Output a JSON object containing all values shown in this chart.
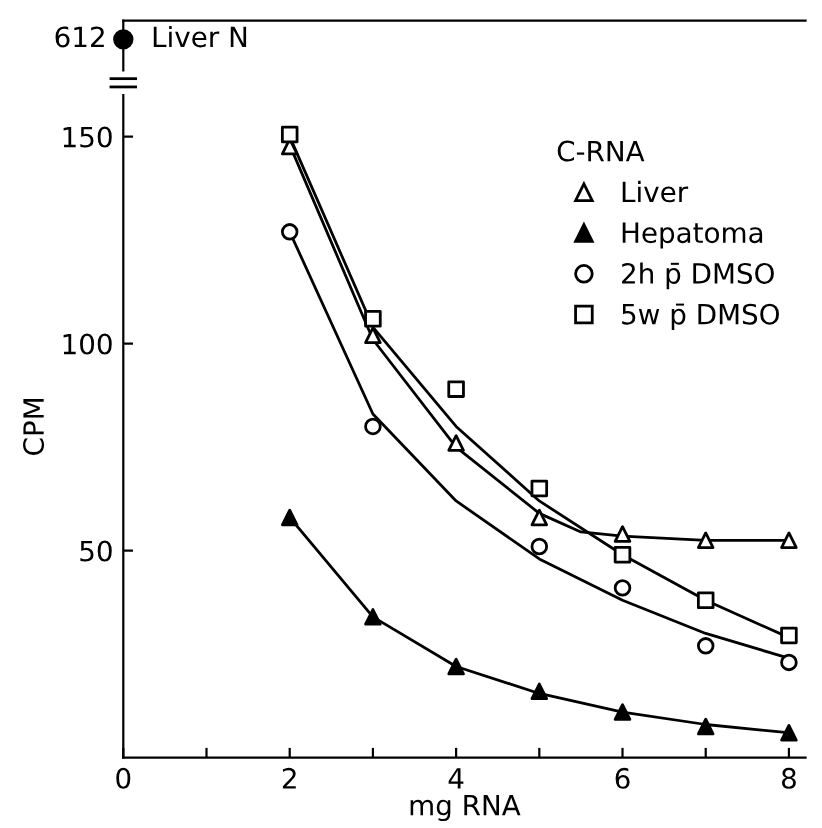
{
  "chart_data": [
    {
      "type": "other",
      "categories": [
        null
      ],
      "data_labels": true,
      "series": [
        {
          "name": "Liver N",
          "color": "#000000",
          "marker": "circle",
          "values": [
            612
          ]
        }
      ]
    },
    {
      "type": "scatter",
      "xlabel": "mg RNA",
      "ylabel": "CPM",
      "legend_title": "C-RNA",
      "legend": "top right",
      "grid": false,
      "xlim": [
        0,
        8.2
      ],
      "ylim": [
        0,
        160
      ],
      "xticks": [
        0,
        {
          "value": 1,
          "label": null
        },
        2,
        {
          "value": 3,
          "label": null
        },
        4,
        {
          "value": 5,
          "label": null
        },
        6,
        {
          "value": 7,
          "label": null
        },
        8
      ],
      "yticks": [
        50,
        100,
        150
      ],
      "series": [
        {
          "name": "Liver",
          "color": "#ffffff",
          "marker": "triangle",
          "x": [
            2,
            3,
            4,
            5,
            6,
            7,
            8
          ],
          "values": [
            147.6,
            102,
            76,
            58,
            54,
            52.5,
            52.5
          ]
        },
        {
          "name": "Hepatoma",
          "color": "#000000",
          "marker": "triangle",
          "x": [
            2,
            3,
            4,
            5,
            6,
            7,
            8
          ],
          "values": [
            58,
            34,
            22,
            16,
            11,
            7.5,
            6
          ]
        },
        {
          "name": "2h p̄ DMSO",
          "color": "#ffffff",
          "marker": "circle",
          "x": [
            2,
            3,
            5,
            6,
            7,
            8
          ],
          "values": [
            127,
            80,
            51,
            41,
            27,
            23
          ]
        },
        {
          "name": "5w p̄ DMSO",
          "color": "#ffffff",
          "marker": "square",
          "x": [
            2,
            3,
            4,
            5,
            6,
            7,
            8
          ],
          "values": [
            150.5,
            106,
            89,
            65,
            49,
            38,
            29.5
          ]
        },
        {
          "type": "line",
          "color": "#000000",
          "x": [
            2,
            3,
            4,
            5,
            5.5,
            6,
            7,
            8
          ],
          "values": [
            148,
            101,
            75,
            59,
            54.5,
            53.5,
            52.5,
            52.5
          ]
        },
        {
          "type": "line",
          "color": "#000000",
          "x": [
            2,
            3,
            4,
            5,
            6,
            7,
            8
          ],
          "values": [
            58,
            34,
            22,
            15.5,
            11,
            8,
            6
          ]
        },
        {
          "type": "line",
          "color": "#000000",
          "x": [
            2,
            3,
            4,
            5,
            6,
            7,
            8
          ],
          "values": [
            127,
            83,
            62,
            48,
            38,
            30,
            24
          ]
        },
        {
          "type": "line",
          "color": "#000000",
          "x": [
            2,
            3,
            4,
            5,
            6,
            7,
            8
          ],
          "values": [
            150,
            104,
            80,
            62,
            49,
            38,
            29
          ]
        }
      ]
    }
  ]
}
